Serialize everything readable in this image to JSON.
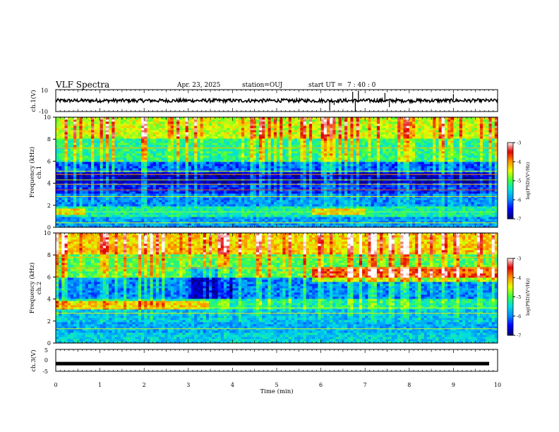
{
  "header": {
    "title": "VLF Spectra",
    "date": "Apr. 23, 2025",
    "station": "station=OUJ",
    "start_label": "start UT =",
    "start_time": "7 : 40 : 0"
  },
  "colors": {
    "colormap": [
      "#00007a",
      "#0000ff",
      "#0090ff",
      "#00e0e0",
      "#40ff40",
      "#e8ff00",
      "#ff9000",
      "#e00000",
      "#ffffff"
    ],
    "waveform": "#000000"
  },
  "chart_data": [
    {
      "type": "line",
      "name": "ch1-waveform",
      "ylabel": "ch.1(V)",
      "ylim": [
        -10,
        10
      ],
      "yticks": [
        "10",
        "-10"
      ],
      "xlim": [
        0,
        10
      ],
      "baseline": 0,
      "spike_times_min": [
        6.2,
        6.3,
        6.72,
        6.78,
        6.85,
        7.45,
        7.55,
        9.0
      ],
      "spike_amplitudes": [
        -9,
        -4,
        8,
        -10,
        9,
        7,
        -6,
        6
      ]
    },
    {
      "type": "heatmap",
      "name": "ch1-spectrogram",
      "ylabel": "Frequency (kHz)",
      "channel": "ch.1",
      "ylim": [
        0,
        10
      ],
      "yticks": [
        "0",
        "2",
        "4",
        "6",
        "8",
        "10"
      ],
      "xlim": [
        0,
        10
      ],
      "colorbar": {
        "label": "log(PSD)(V²/Hz)",
        "range": [
          -7,
          -3
        ],
        "ticks": [
          "-3",
          "-4",
          "-5",
          "-6",
          "-7"
        ]
      },
      "band_levels": [
        {
          "f": [
            0,
            1
          ],
          "level": 0.28
        },
        {
          "f": [
            1,
            2
          ],
          "level": 0.42
        },
        {
          "f": [
            2,
            3
          ],
          "level": 0.25
        },
        {
          "f": [
            3,
            4
          ],
          "level": 0.15
        },
        {
          "f": [
            4,
            5
          ],
          "level": 0.05
        },
        {
          "f": [
            5,
            6
          ],
          "level": 0.2
        },
        {
          "f": [
            6,
            8
          ],
          "level": 0.45
        },
        {
          "f": [
            8,
            10
          ],
          "level": 0.6
        }
      ],
      "lines_khz": [
        0.4,
        1.4,
        2.8,
        3.4,
        3.9,
        4.3,
        4.8,
        5.1,
        7.2
      ],
      "line_levels": [
        0.6,
        0.55,
        0.65,
        0.8,
        0.7,
        0.6,
        0.75,
        0.6,
        0.7
      ]
    },
    {
      "type": "heatmap",
      "name": "ch2-spectrogram",
      "ylabel": "Frequency (kHz)",
      "channel": "ch.2",
      "ylim": [
        0,
        10
      ],
      "yticks": [
        "0",
        "2",
        "4",
        "6",
        "8",
        "10"
      ],
      "xlim": [
        0,
        10
      ],
      "colorbar": {
        "label": "log(PSD)(V²/Hz)",
        "range": [
          -7,
          -3
        ],
        "ticks": [
          "-3",
          "-4",
          "-5",
          "-6",
          "-7"
        ]
      },
      "band_levels": [
        {
          "f": [
            0,
            1
          ],
          "level": 0.35
        },
        {
          "f": [
            1,
            2
          ],
          "level": 0.3
        },
        {
          "f": [
            2,
            3
          ],
          "level": 0.32
        },
        {
          "f": [
            3,
            4
          ],
          "level": 0.42
        },
        {
          "f": [
            4,
            6
          ],
          "level": 0.25
        },
        {
          "f": [
            6,
            8
          ],
          "level": 0.5
        },
        {
          "f": [
            8,
            10
          ],
          "level": 0.68
        }
      ],
      "lines_khz": [
        1.3,
        2.7,
        3.2,
        6.8,
        7.8
      ],
      "line_levels": [
        0.6,
        0.65,
        0.6,
        0.7,
        0.7
      ]
    },
    {
      "type": "line",
      "name": "ch3-trace",
      "ylabel": "ch.3(V)",
      "ylim": [
        -5,
        5
      ],
      "yticks": [
        "5",
        "0",
        "-5"
      ],
      "xlim": [
        0,
        10
      ],
      "value": -1.5
    }
  ],
  "xaxis": {
    "label": "Time (min)",
    "ticks": [
      "0",
      "1",
      "2",
      "3",
      "4",
      "5",
      "6",
      "7",
      "8",
      "9",
      "10"
    ]
  }
}
